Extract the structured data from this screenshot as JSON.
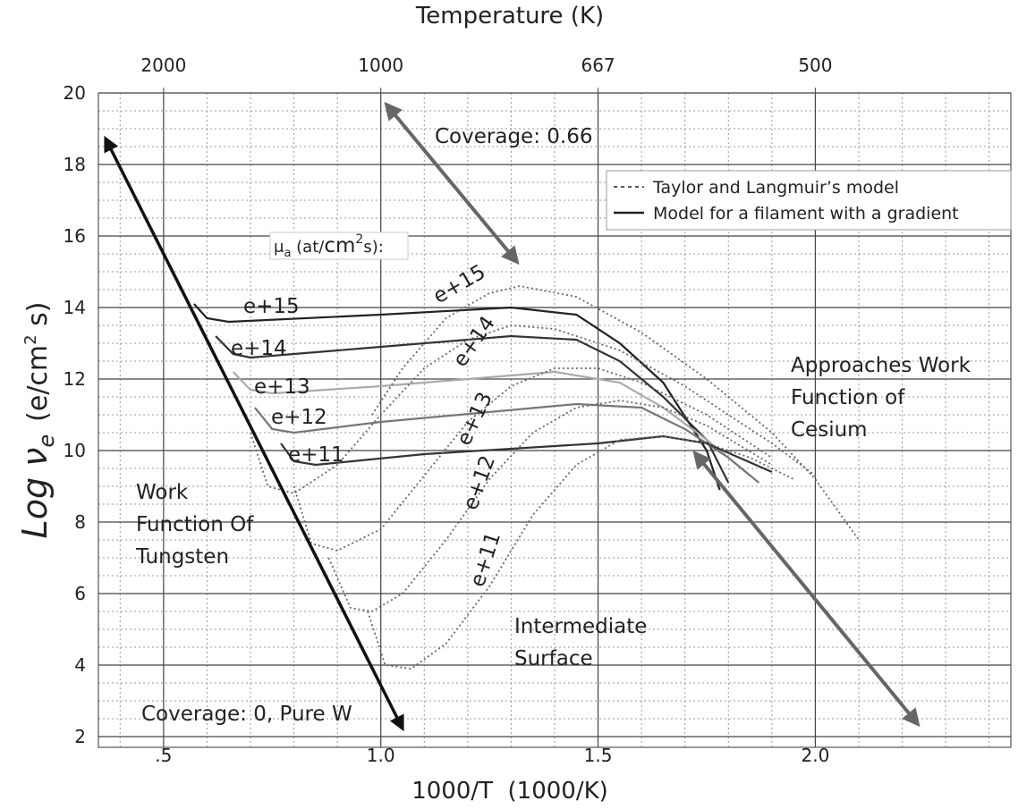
{
  "chart_data": {
    "type": "line",
    "x2label": "Temperature (K)",
    "xlabel": "1000/T  (1000/K)",
    "ylabel": {
      "main": "Log ν",
      "sub": "e",
      "unit": "(e/cm",
      "sup": "2",
      "unit_end": " s)"
    },
    "xlim": [
      0.35,
      2.45
    ],
    "ylim": [
      1.7,
      20
    ],
    "xticks": [
      {
        "value": 0.5,
        "label": ".5"
      },
      {
        "value": 1,
        "label": "1.0"
      },
      1.5,
      {
        "value": 2,
        "label": "2.0"
      }
    ],
    "x2ticks": [
      {
        "value": 0.5,
        "label": "2000"
      },
      {
        "value": 1,
        "label": "1000"
      },
      {
        "value": 1.5,
        "label": "667"
      },
      {
        "value": 2,
        "label": "500"
      }
    ],
    "yticks": [
      2,
      4,
      6,
      8,
      10,
      12,
      14,
      16,
      18,
      20
    ],
    "xminor": [
      0.4,
      0.6,
      0.7,
      0.8,
      0.9,
      1.1,
      1.2,
      1.3,
      1.4,
      1.6,
      1.7,
      1.8,
      1.9,
      2.1,
      2.2,
      2.3,
      2.4
    ],
    "yminor": [
      2.5,
      3,
      3.5,
      4.5,
      5,
      5.5,
      6.5,
      7,
      7.5,
      8.5,
      9,
      9.5,
      10.5,
      11,
      11.5,
      12.5,
      13,
      13.5,
      14.5,
      15,
      15.5,
      16.5,
      17,
      17.5,
      18.5,
      19,
      19.5
    ],
    "grid": true,
    "legend": [
      {
        "label": "Taylor and Langmuir’s model",
        "style": "dotted"
      },
      {
        "label": "Model for a filament with a gradient",
        "style": "solid"
      }
    ],
    "series": [
      {
        "name": "e+15",
        "style": "solid",
        "color": "#222222",
        "x": [
          0.57,
          0.6,
          0.65,
          1.0,
          1.3,
          1.45,
          1.55,
          1.65,
          1.75,
          1.78
        ],
        "values": [
          14.1,
          13.7,
          13.6,
          13.8,
          14.0,
          13.8,
          13.0,
          11.9,
          10.0,
          8.9
        ]
      },
      {
        "name": "e+14",
        "style": "solid",
        "color": "#333333",
        "x": [
          0.62,
          0.66,
          0.7,
          1.0,
          1.3,
          1.45,
          1.55,
          1.65,
          1.75,
          1.8
        ],
        "values": [
          13.2,
          12.7,
          12.6,
          12.9,
          13.2,
          13.1,
          12.5,
          11.5,
          10.3,
          9.1
        ]
      },
      {
        "name": "e+13",
        "style": "solid",
        "color": "#aaaaaa",
        "x": [
          0.66,
          0.7,
          0.75,
          1.0,
          1.4,
          1.55,
          1.65,
          1.75,
          1.85
        ],
        "values": [
          12.2,
          11.7,
          11.6,
          11.8,
          12.2,
          11.9,
          11.2,
          10.3,
          9.3
        ]
      },
      {
        "name": "e+12",
        "style": "solid",
        "color": "#777777",
        "x": [
          0.71,
          0.75,
          0.8,
          1.0,
          1.45,
          1.6,
          1.7,
          1.8,
          1.87
        ],
        "values": [
          11.2,
          10.6,
          10.5,
          10.8,
          11.3,
          11.2,
          10.6,
          9.8,
          9.1
        ]
      },
      {
        "name": "e+11",
        "style": "solid",
        "color": "#333333",
        "x": [
          0.77,
          0.8,
          0.85,
          1.1,
          1.5,
          1.65,
          1.75,
          1.9
        ],
        "values": [
          10.2,
          9.7,
          9.6,
          9.9,
          10.2,
          10.4,
          10.2,
          9.4
        ]
      },
      {
        "name": "e+15",
        "style": "dotted",
        "color": "#666666",
        "x": [
          0.98,
          1.05,
          1.15,
          1.25,
          1.32,
          1.45,
          1.6,
          1.75,
          1.9,
          2.0,
          2.1
        ],
        "values": [
          11.0,
          12.3,
          13.7,
          14.4,
          14.6,
          14.3,
          13.3,
          12.0,
          10.5,
          9.2,
          7.5
        ]
      },
      {
        "name": "e+14",
        "style": "dotted",
        "color": "#666666",
        "x": [
          0.7,
          0.74,
          0.8,
          0.9,
          1.0,
          1.1,
          1.2,
          1.3,
          1.4,
          1.55,
          1.7,
          1.9,
          2.0
        ],
        "values": [
          10.5,
          9.0,
          8.8,
          9.6,
          11.0,
          12.3,
          13.1,
          13.5,
          13.4,
          12.8,
          11.8,
          10.2,
          9.3
        ]
      },
      {
        "name": "e+13",
        "style": "dotted",
        "color": "#666666",
        "x": [
          0.8,
          0.84,
          0.9,
          1.0,
          1.1,
          1.2,
          1.3,
          1.4,
          1.5,
          1.6,
          1.75,
          1.9
        ],
        "values": [
          9.0,
          7.4,
          7.2,
          7.8,
          9.3,
          10.8,
          11.8,
          12.3,
          12.3,
          11.9,
          11.0,
          9.8
        ]
      },
      {
        "name": "e+12",
        "style": "dotted",
        "color": "#666666",
        "x": [
          0.88,
          0.93,
          0.98,
          1.05,
          1.15,
          1.25,
          1.35,
          1.45,
          1.55,
          1.65,
          1.75,
          1.9
        ],
        "values": [
          7.0,
          5.6,
          5.5,
          6.0,
          7.5,
          9.2,
          10.5,
          11.2,
          11.4,
          11.2,
          10.7,
          9.6
        ]
      },
      {
        "name": "e+11",
        "style": "dotted",
        "color": "#666666",
        "x": [
          0.97,
          1.01,
          1.07,
          1.15,
          1.25,
          1.35,
          1.45,
          1.55,
          1.65,
          1.75,
          1.85,
          1.95
        ],
        "values": [
          5.5,
          4.0,
          3.9,
          4.6,
          6.2,
          8.2,
          9.6,
          10.3,
          10.4,
          10.2,
          9.8,
          9.2
        ]
      }
    ],
    "annotations": {
      "coverage_high": "Coverage: 0.66",
      "mu": {
        "main": "μ",
        "sub": "a",
        "unit": " (at/",
        "big": "cm",
        "sup": "2",
        "end": "s):"
      },
      "cesium": [
        "Approaches Work",
        "Function of",
        "Cesium"
      ],
      "tungsten": [
        "Work",
        "Function Of",
        "Tungsten"
      ],
      "intermediate": [
        "Intermediate",
        "Surface"
      ],
      "coverage_zero": "Coverage: 0, Pure W"
    }
  }
}
